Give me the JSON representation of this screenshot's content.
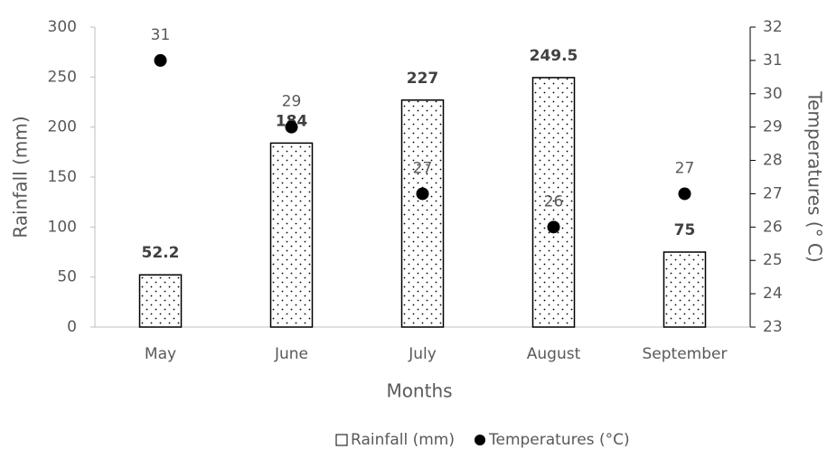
{
  "chart_data": {
    "type": "bar",
    "categories": [
      "May",
      "June",
      "July",
      "August",
      "September"
    ],
    "series": [
      {
        "name": "Rainfall (mm)",
        "type": "bar",
        "color": "#000000",
        "values": [
          52.2,
          184,
          227,
          249.5,
          75
        ]
      },
      {
        "name": "Temperatures (°C)",
        "type": "scatter",
        "axis": "y2",
        "color": "#000000",
        "values": [
          31,
          29,
          27,
          26,
          27
        ]
      }
    ],
    "xlabel": "Months",
    "ylabel": "Rainfall (mm)",
    "y2label": "Temperatures (° C)",
    "ylim": [
      0,
      300
    ],
    "yticks": [
      0,
      50,
      100,
      150,
      200,
      250,
      300
    ],
    "y2lim": [
      23,
      32
    ],
    "y2ticks": [
      23,
      24,
      25,
      26,
      27,
      28,
      29,
      30,
      31,
      32
    ],
    "legend": "bottom"
  }
}
